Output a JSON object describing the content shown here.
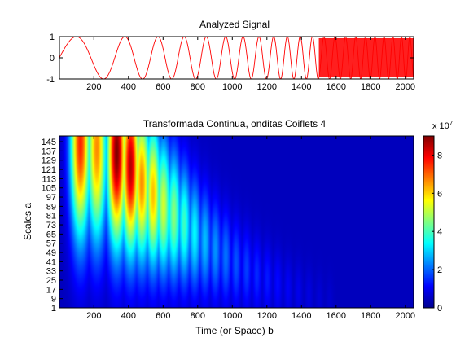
{
  "chart_data": [
    {
      "type": "line",
      "title": "Analyzed Signal",
      "xlabel": "",
      "ylabel": "",
      "xlim": [
        1,
        2048
      ],
      "ylim": [
        -1,
        1
      ],
      "x_ticks": [
        "200",
        "400",
        "600",
        "800",
        "1000",
        "1200",
        "1400",
        "1600",
        "1800",
        "2000"
      ],
      "y_ticks": [
        "1",
        "0",
        "-1"
      ],
      "series": [
        {
          "color": "#ff0000",
          "description_of_shape": "unit-amplitude chirp, frequency increasing with b; densely filled after ~1500",
          "x": [
            1,
            120,
            210,
            340,
            400,
            520,
            600,
            690,
            800,
            1000,
            1200,
            1400,
            1500,
            2048
          ],
          "y": [
            0,
            1,
            -1,
            1,
            -1,
            1,
            -1,
            1,
            -1,
            1,
            -1,
            1,
            -1,
            0
          ]
        }
      ]
    },
    {
      "type": "heatmap",
      "title": "Transformada Continua, onditas Coiflets 4",
      "xlabel": "Time (or Space) b",
      "ylabel": "Scales a",
      "xlim": [
        1,
        2048
      ],
      "ylim": [
        1,
        150
      ],
      "x_ticks": [
        "200",
        "400",
        "600",
        "800",
        "1000",
        "1200",
        "1400",
        "1600",
        "1800",
        "2000"
      ],
      "y_ticks": [
        "1",
        "9",
        "17",
        "25",
        "33",
        "41",
        "49",
        "57",
        "65",
        "73",
        "81",
        "89",
        "97",
        "105",
        "113",
        "121",
        "129",
        "137",
        "145"
      ],
      "colormap": "jet",
      "colorbar": {
        "ticks": [
          "0",
          "2",
          "4",
          "6",
          "8"
        ],
        "exponent_label": "x 10",
        "exponent_value": "7",
        "range": [
          0,
          9
        ]
      },
      "ridges": [
        {
          "b": 120,
          "a": 145,
          "peak": 7.5
        },
        {
          "b": 215,
          "a": 140,
          "peak": 6.5
        },
        {
          "b": 330,
          "a": 136,
          "peak": 9.0
        },
        {
          "b": 410,
          "a": 124,
          "peak": 8.5
        },
        {
          "b": 475,
          "a": 110,
          "peak": 6.5
        },
        {
          "b": 540,
          "a": 100,
          "peak": 6.0
        },
        {
          "b": 600,
          "a": 90,
          "peak": 5.0
        },
        {
          "b": 660,
          "a": 82,
          "peak": 4.3
        },
        {
          "b": 720,
          "a": 74,
          "peak": 3.6
        },
        {
          "b": 780,
          "a": 66,
          "peak": 3.0
        },
        {
          "b": 840,
          "a": 59,
          "peak": 2.4
        },
        {
          "b": 900,
          "a": 52,
          "peak": 2.0
        },
        {
          "b": 960,
          "a": 46,
          "peak": 1.7
        },
        {
          "b": 1020,
          "a": 40,
          "peak": 1.4
        },
        {
          "b": 1080,
          "a": 35,
          "peak": 1.2
        },
        {
          "b": 1140,
          "a": 30,
          "peak": 1.0
        },
        {
          "b": 1200,
          "a": 26,
          "peak": 0.85
        },
        {
          "b": 1260,
          "a": 22,
          "peak": 0.7
        },
        {
          "b": 1320,
          "a": 18,
          "peak": 0.55
        },
        {
          "b": 1380,
          "a": 15,
          "peak": 0.45
        },
        {
          "b": 1440,
          "a": 12,
          "peak": 0.35
        },
        {
          "b": 1500,
          "a": 9,
          "peak": 0.25
        },
        {
          "b": 1560,
          "a": 7,
          "peak": 0.18
        }
      ]
    }
  ]
}
